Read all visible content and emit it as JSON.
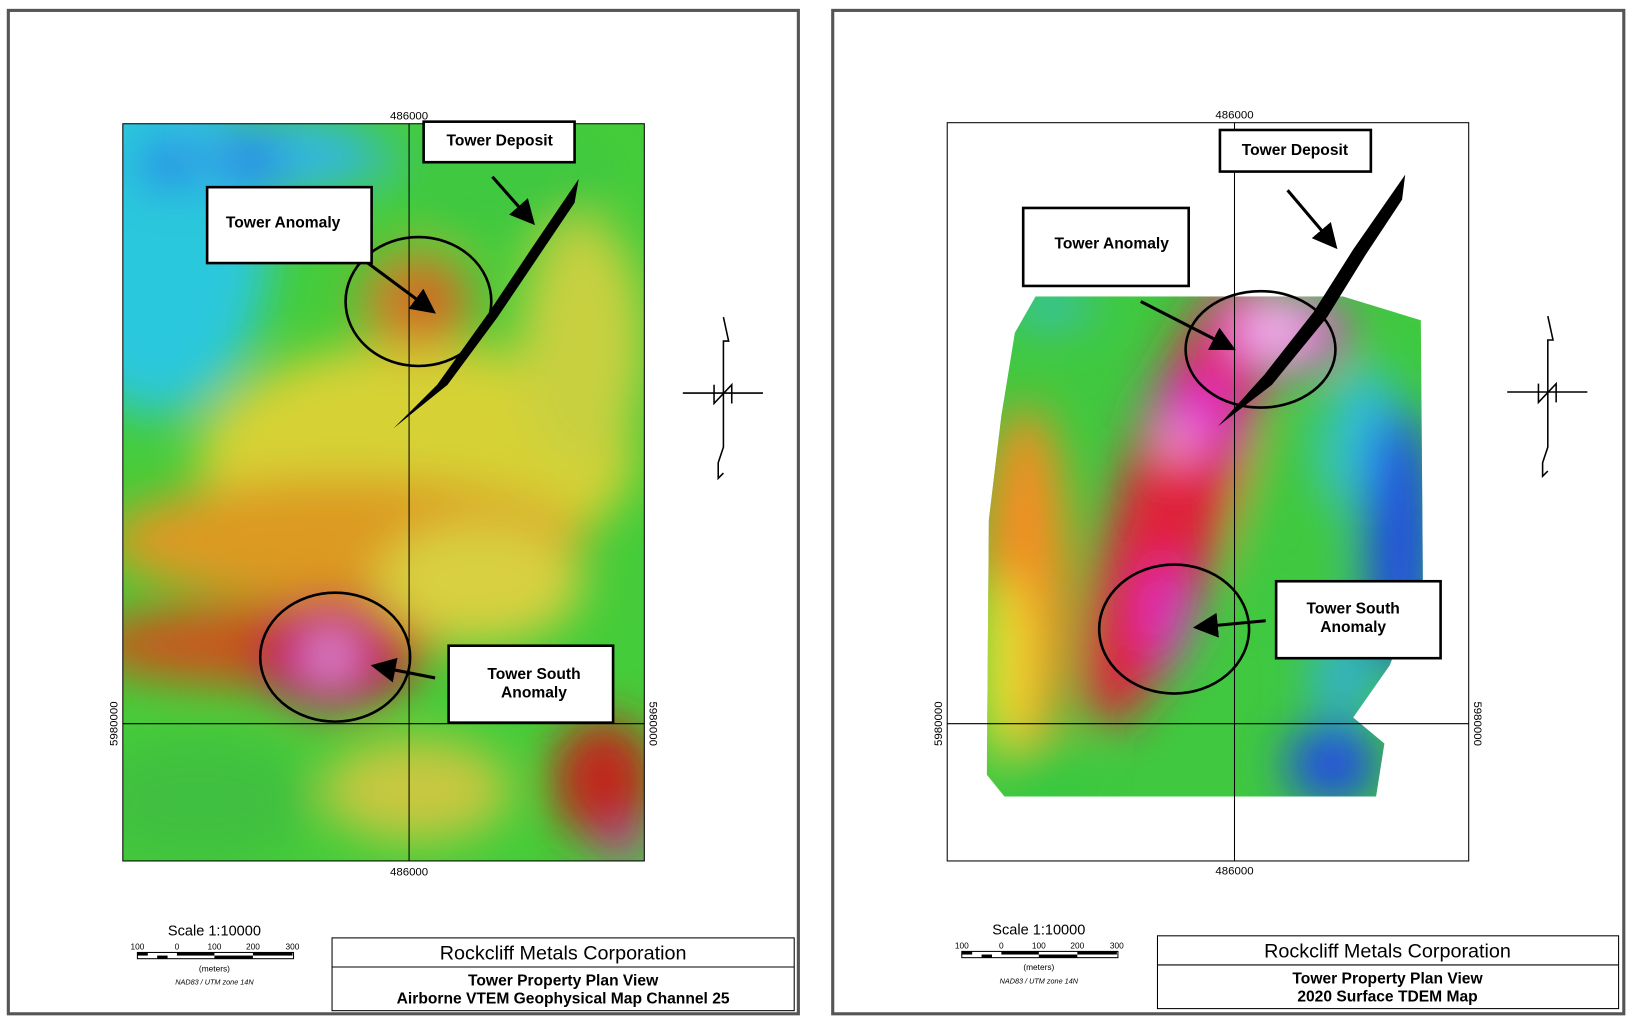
{
  "maps": [
    {
      "easting_top": "486000",
      "easting_bottom": "486000",
      "northing_left": "5980000",
      "northing_right": "5980000",
      "annotations": {
        "deposit": "Tower Deposit",
        "anomaly": "Tower Anomaly",
        "south": [
          "Tower South",
          "Anomaly"
        ]
      },
      "scale": {
        "label": "Scale 1:10000",
        "ticks": [
          "100",
          "0",
          "100",
          "200",
          "300"
        ],
        "unit": "(meters)",
        "datum": "NAD83 / UTM zone 14N"
      },
      "company": "Rockcliff Metals Corporation",
      "title": "Tower Property Plan View",
      "subtitle": "Airborne VTEM Geophysical Map Channel 25"
    },
    {
      "easting_top": "486000",
      "easting_bottom": "486000",
      "northing_left": "5980000",
      "northing_right": "5980000",
      "annotations": {
        "deposit": "Tower Deposit",
        "anomaly": "Tower Anomaly",
        "south": [
          "Tower South",
          "Anomaly"
        ]
      },
      "scale": {
        "label": "Scale 1:10000",
        "ticks": [
          "100",
          "0",
          "100",
          "200",
          "300"
        ],
        "unit": "(meters)",
        "datum": "NAD83 / UTM zone 14N"
      },
      "company": "Rockcliff Metals Corporation",
      "title": "Tower Property Plan View",
      "subtitle": "2020 Surface TDEM Map"
    }
  ]
}
